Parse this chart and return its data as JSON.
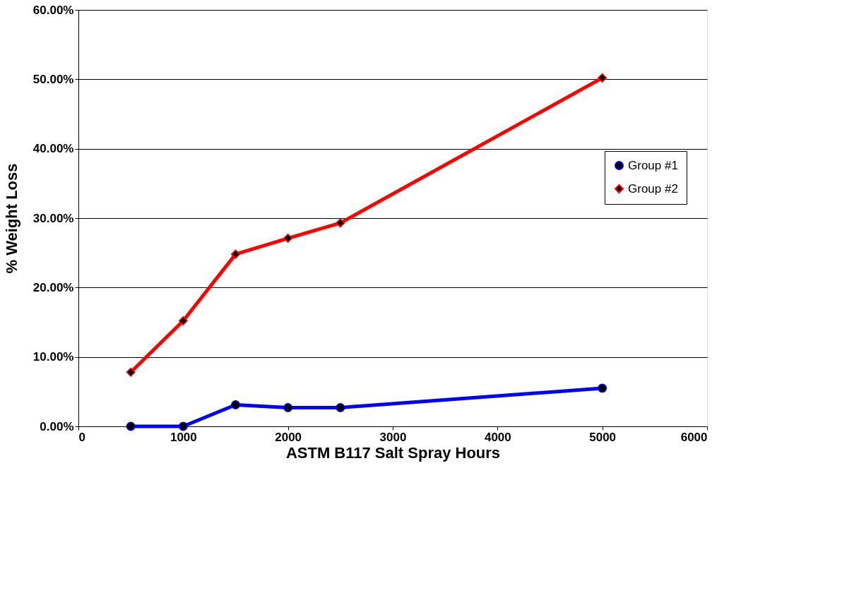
{
  "chart_data": {
    "type": "line",
    "xlabel": "ASTM B117 Salt Spray Hours",
    "ylabel": "% Weight Loss",
    "x": [
      500,
      1000,
      1500,
      2000,
      2500,
      5000
    ],
    "series": [
      {
        "name": "Group #1",
        "color": "#0000ff",
        "marker": "circle",
        "values": [
          0,
          0,
          3.1,
          2.7,
          2.7,
          5.5
        ]
      },
      {
        "name": "Group #2",
        "color": "#ff0000",
        "marker": "diamond",
        "values": [
          7.8,
          15.2,
          24.8,
          27.1,
          29.3,
          50.2
        ]
      }
    ],
    "xlim": [
      0,
      6000
    ],
    "xticks": [
      0,
      1000,
      2000,
      3000,
      4000,
      5000,
      6000
    ],
    "ylim": [
      0,
      60
    ],
    "yticks": [
      {
        "value": 0,
        "label": "0.00%"
      },
      {
        "value": 10,
        "label": "10.00%"
      },
      {
        "value": 20,
        "label": "20.00%"
      },
      {
        "value": 30,
        "label": "30.00%"
      },
      {
        "value": 40,
        "label": "40.00%"
      },
      {
        "value": 50,
        "label": "50.00%"
      },
      {
        "value": 60,
        "label": "60.00%"
      }
    ],
    "grid": "y",
    "legend": "right",
    "line_style": "solid"
  }
}
